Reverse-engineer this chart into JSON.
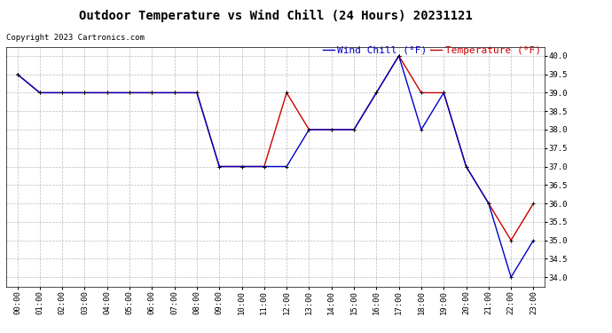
{
  "title": "Outdoor Temperature vs Wind Chill (24 Hours) 20231121",
  "copyright": "Copyright 2023 Cartronics.com",
  "legend_wind_chill": "Wind Chill (°F)",
  "legend_temperature": "Temperature (°F)",
  "x_labels": [
    "00:00",
    "01:00",
    "02:00",
    "03:00",
    "04:00",
    "05:00",
    "06:00",
    "07:00",
    "08:00",
    "09:00",
    "10:00",
    "11:00",
    "12:00",
    "13:00",
    "14:00",
    "15:00",
    "16:00",
    "17:00",
    "18:00",
    "19:00",
    "20:00",
    "21:00",
    "22:00",
    "23:00"
  ],
  "temperature_x": [
    0,
    1,
    2,
    3,
    4,
    5,
    6,
    7,
    8,
    9,
    10,
    11,
    12,
    13,
    14,
    15,
    16,
    17,
    18,
    19,
    20,
    21,
    22,
    23
  ],
  "temperature_y": [
    39.5,
    39.0,
    39.0,
    39.0,
    39.0,
    39.0,
    39.0,
    39.0,
    39.0,
    37.0,
    37.0,
    37.0,
    39.0,
    38.0,
    38.0,
    38.0,
    39.0,
    40.0,
    39.0,
    39.0,
    37.0,
    36.0,
    35.0,
    36.0
  ],
  "wind_chill_x": [
    0,
    1,
    2,
    3,
    4,
    5,
    6,
    7,
    8,
    9,
    10,
    11,
    12,
    13,
    14,
    15,
    16,
    17,
    18,
    19,
    20,
    21,
    22,
    23
  ],
  "wind_chill_y": [
    39.5,
    39.0,
    39.0,
    39.0,
    39.0,
    39.0,
    39.0,
    39.0,
    39.0,
    37.0,
    37.0,
    37.0,
    37.0,
    38.0,
    38.0,
    38.0,
    39.0,
    40.0,
    38.0,
    39.0,
    37.0,
    36.0,
    34.0,
    35.0
  ],
  "ylim": [
    33.75,
    40.25
  ],
  "yticks": [
    34.0,
    34.5,
    35.0,
    35.5,
    36.0,
    36.5,
    37.0,
    37.5,
    38.0,
    38.5,
    39.0,
    39.5,
    40.0
  ],
  "temp_color": "#cc0000",
  "wind_color": "#0000cc",
  "marker_color": "#000000",
  "bg_color": "#ffffff",
  "grid_color": "#bbbbbb",
  "title_fontsize": 10,
  "tick_fontsize": 6.5,
  "legend_fontsize": 8,
  "copyright_fontsize": 6.5
}
